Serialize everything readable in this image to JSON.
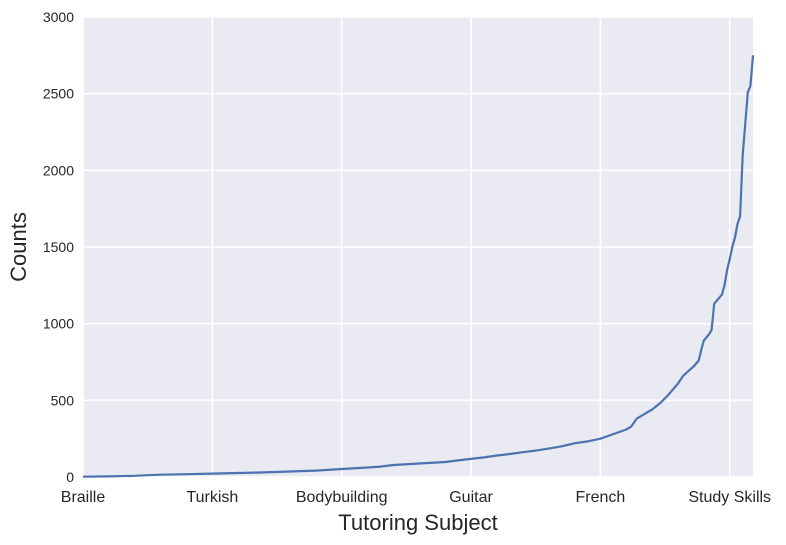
{
  "chart_data": {
    "type": "line",
    "title": "",
    "xlabel": "Tutoring Subject",
    "ylabel": "Counts",
    "x_tick_labels": [
      "Braille",
      "Turkish",
      "Bodybuilding",
      "Guitar",
      "French",
      "Study Skills"
    ],
    "x_tick_positions": [
      0,
      50,
      100,
      150,
      200,
      250
    ],
    "x_range": [
      0,
      259
    ],
    "ylim": [
      0,
      3000
    ],
    "y_ticks": [
      0,
      500,
      1000,
      1500,
      2000,
      2500,
      3000
    ],
    "grid": true,
    "legend": "none",
    "series": [
      {
        "color": "#4c72b0",
        "points": [
          [
            0,
            2
          ],
          [
            10,
            4
          ],
          [
            20,
            8
          ],
          [
            25,
            12
          ],
          [
            30,
            15
          ],
          [
            40,
            18
          ],
          [
            50,
            22
          ],
          [
            60,
            26
          ],
          [
            70,
            30
          ],
          [
            80,
            36
          ],
          [
            90,
            42
          ],
          [
            100,
            52
          ],
          [
            110,
            62
          ],
          [
            115,
            68
          ],
          [
            120,
            78
          ],
          [
            130,
            88
          ],
          [
            140,
            98
          ],
          [
            145,
            108
          ],
          [
            150,
            118
          ],
          [
            155,
            128
          ],
          [
            160,
            140
          ],
          [
            165,
            150
          ],
          [
            170,
            162
          ],
          [
            175,
            172
          ],
          [
            180,
            185
          ],
          [
            185,
            200
          ],
          [
            190,
            220
          ],
          [
            195,
            232
          ],
          [
            200,
            250
          ],
          [
            205,
            280
          ],
          [
            210,
            310
          ],
          [
            212,
            330
          ],
          [
            214,
            380
          ],
          [
            217,
            410
          ],
          [
            220,
            440
          ],
          [
            223,
            480
          ],
          [
            226,
            530
          ],
          [
            228,
            570
          ],
          [
            230,
            610
          ],
          [
            232,
            660
          ],
          [
            234,
            690
          ],
          [
            236,
            720
          ],
          [
            238,
            760
          ],
          [
            239,
            830
          ],
          [
            240,
            890
          ],
          [
            242,
            930
          ],
          [
            243,
            960
          ],
          [
            244,
            1130
          ],
          [
            245,
            1150
          ],
          [
            246,
            1170
          ],
          [
            247,
            1190
          ],
          [
            248,
            1250
          ],
          [
            249,
            1350
          ],
          [
            250,
            1420
          ],
          [
            251,
            1500
          ],
          [
            252,
            1560
          ],
          [
            253,
            1650
          ],
          [
            254,
            1700
          ],
          [
            255,
            2100
          ],
          [
            256,
            2300
          ],
          [
            257,
            2510
          ],
          [
            258,
            2550
          ],
          [
            259,
            2750
          ]
        ]
      }
    ]
  }
}
